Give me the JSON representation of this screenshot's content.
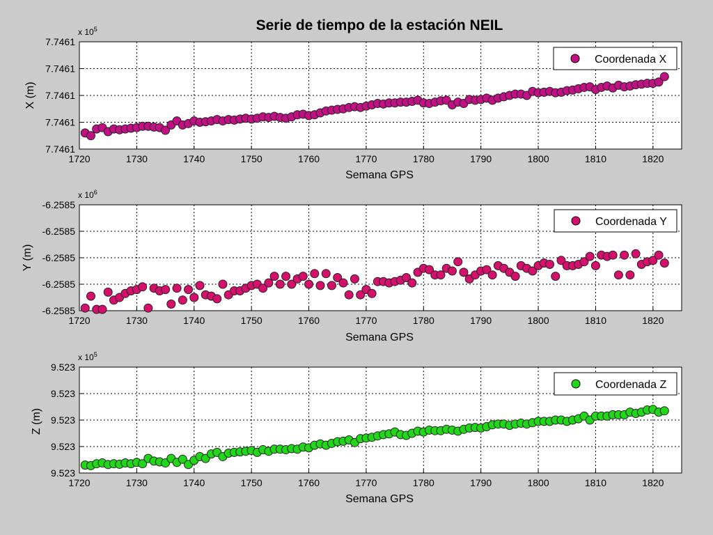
{
  "figure": {
    "title": "Serie de tiempo de la estación NEIL",
    "background": "#cbcbcb"
  },
  "chart_data": [
    {
      "type": "scatter",
      "title": "",
      "xlabel": "Semana GPS",
      "ylabel": "X (m)",
      "exponent_label": "x 10",
      "exponent_power": "5",
      "xlim": [
        1720,
        1825
      ],
      "xticks": [
        1720,
        1730,
        1740,
        1750,
        1760,
        1770,
        1780,
        1790,
        1800,
        1810,
        1820
      ],
      "ylim": [
        0,
        4
      ],
      "yticks": [
        0,
        1,
        2,
        3,
        4
      ],
      "ytick_labels": [
        "7.7461",
        "7.7461",
        "7.7461",
        "7.7461",
        "7.7461"
      ],
      "grid": true,
      "legend_position": "top-right",
      "marker_color": "#c01083",
      "series": [
        {
          "name": "Coordenada X",
          "x": [
            1721,
            1722,
            1723,
            1724,
            1725,
            1726,
            1727,
            1728,
            1729,
            1730,
            1731,
            1732,
            1733,
            1734,
            1735,
            1736,
            1737,
            1738,
            1739,
            1740,
            1741,
            1742,
            1743,
            1744,
            1745,
            1746,
            1747,
            1748,
            1749,
            1750,
            1751,
            1752,
            1753,
            1754,
            1755,
            1756,
            1757,
            1758,
            1759,
            1760,
            1761,
            1762,
            1763,
            1764,
            1765,
            1766,
            1767,
            1768,
            1769,
            1770,
            1771,
            1772,
            1773,
            1774,
            1775,
            1776,
            1777,
            1778,
            1779,
            1780,
            1781,
            1782,
            1783,
            1784,
            1785,
            1786,
            1787,
            1788,
            1789,
            1790,
            1791,
            1792,
            1793,
            1794,
            1795,
            1796,
            1797,
            1798,
            1799,
            1800,
            1801,
            1802,
            1803,
            1804,
            1805,
            1806,
            1807,
            1808,
            1809,
            1810,
            1811,
            1812,
            1813,
            1814,
            1815,
            1816,
            1817,
            1818,
            1819,
            1820,
            1821,
            1822
          ],
          "y": [
            0.6,
            0.5,
            0.75,
            0.8,
            0.65,
            0.75,
            0.72,
            0.75,
            0.78,
            0.8,
            0.85,
            0.85,
            0.82,
            0.8,
            0.7,
            0.9,
            1.05,
            0.9,
            0.95,
            1.05,
            1.0,
            1.02,
            1.05,
            1.1,
            1.05,
            1.1,
            1.08,
            1.12,
            1.15,
            1.12,
            1.15,
            1.2,
            1.18,
            1.22,
            1.18,
            1.15,
            1.2,
            1.28,
            1.3,
            1.25,
            1.28,
            1.35,
            1.42,
            1.45,
            1.48,
            1.5,
            1.55,
            1.58,
            1.55,
            1.6,
            1.65,
            1.7,
            1.68,
            1.72,
            1.72,
            1.75,
            1.75,
            1.78,
            1.82,
            1.72,
            1.7,
            1.75,
            1.8,
            1.82,
            1.65,
            1.75,
            1.7,
            1.85,
            1.82,
            1.85,
            1.9,
            1.82,
            1.9,
            1.95,
            2.0,
            2.05,
            2.05,
            2.0,
            2.15,
            2.1,
            2.12,
            2.15,
            2.1,
            2.12,
            2.18,
            2.2,
            2.25,
            2.3,
            2.32,
            2.22,
            2.3,
            2.35,
            2.28,
            2.38,
            2.32,
            2.35,
            2.4,
            2.42,
            2.45,
            2.45,
            2.5,
            2.7
          ]
        }
      ]
    },
    {
      "type": "scatter",
      "title": "",
      "xlabel": "Semana GPS",
      "ylabel": "Y (m)",
      "exponent_label": "x 10",
      "exponent_power": "6",
      "xlim": [
        1720,
        1825
      ],
      "xticks": [
        1720,
        1730,
        1740,
        1750,
        1760,
        1770,
        1780,
        1790,
        1800,
        1810,
        1820
      ],
      "ylim": [
        0,
        4
      ],
      "yticks": [
        0,
        1,
        2,
        3,
        4
      ],
      "ytick_labels": [
        "-6.2585",
        "-6.2585",
        "-6.2585",
        "-6.2585",
        "-6.2585"
      ],
      "grid": true,
      "legend_position": "top-right",
      "marker_color": "#d4106c",
      "series": [
        {
          "name": "Coordenada Y",
          "x": [
            1721,
            1722,
            1723,
            1724,
            1725,
            1726,
            1727,
            1728,
            1729,
            1730,
            1731,
            1732,
            1733,
            1734,
            1735,
            1736,
            1737,
            1738,
            1739,
            1740,
            1741,
            1742,
            1743,
            1744,
            1745,
            1746,
            1747,
            1748,
            1749,
            1750,
            1751,
            1752,
            1753,
            1754,
            1755,
            1756,
            1757,
            1758,
            1759,
            1760,
            1761,
            1762,
            1763,
            1764,
            1765,
            1766,
            1767,
            1768,
            1769,
            1770,
            1771,
            1772,
            1773,
            1774,
            1775,
            1776,
            1777,
            1778,
            1779,
            1780,
            1781,
            1782,
            1783,
            1784,
            1785,
            1786,
            1787,
            1788,
            1789,
            1790,
            1791,
            1792,
            1793,
            1794,
            1795,
            1796,
            1797,
            1798,
            1799,
            1800,
            1801,
            1802,
            1803,
            1804,
            1805,
            1806,
            1807,
            1808,
            1809,
            1810,
            1811,
            1812,
            1813,
            1814,
            1815,
            1816,
            1817,
            1818,
            1819,
            1820,
            1821,
            1822
          ],
          "y": [
            0.1,
            0.55,
            0.05,
            0.05,
            0.7,
            0.4,
            0.5,
            0.65,
            0.75,
            0.8,
            0.9,
            0.1,
            0.85,
            0.75,
            0.8,
            0.25,
            0.85,
            0.4,
            0.8,
            0.5,
            0.95,
            0.6,
            0.55,
            0.45,
            1.0,
            0.6,
            0.75,
            0.75,
            0.85,
            0.95,
            1.0,
            0.85,
            1.05,
            1.3,
            1.0,
            1.3,
            1.0,
            1.2,
            1.3,
            1.0,
            1.4,
            0.95,
            1.4,
            0.95,
            1.25,
            1.05,
            0.6,
            1.2,
            0.6,
            0.8,
            0.65,
            1.1,
            1.1,
            1.05,
            1.1,
            1.15,
            1.25,
            1.05,
            1.45,
            1.6,
            1.55,
            1.35,
            1.35,
            1.6,
            1.5,
            1.85,
            1.45,
            1.2,
            1.35,
            1.5,
            1.55,
            1.35,
            1.7,
            1.6,
            1.45,
            1.3,
            1.7,
            1.6,
            1.5,
            1.7,
            1.8,
            1.75,
            1.3,
            1.9,
            1.7,
            1.7,
            1.75,
            1.85,
            2.05,
            1.7,
            2.1,
            2.05,
            2.1,
            1.35,
            2.1,
            1.35,
            2.15,
            1.75,
            1.85,
            1.9,
            2.1,
            1.8
          ]
        }
      ]
    },
    {
      "type": "scatter",
      "title": "",
      "xlabel": "Semana GPS",
      "ylabel": "Z (m)",
      "exponent_label": "x 10",
      "exponent_power": "5",
      "xlim": [
        1720,
        1825
      ],
      "xticks": [
        1720,
        1730,
        1740,
        1750,
        1760,
        1770,
        1780,
        1790,
        1800,
        1810,
        1820
      ],
      "ylim": [
        0,
        4
      ],
      "yticks": [
        0,
        1,
        2,
        3,
        4
      ],
      "ytick_labels": [
        "9.523",
        "9.523",
        "9.523",
        "9.523",
        "9.523"
      ],
      "grid": true,
      "legend_position": "top-right",
      "marker_color": "#22d61a",
      "series": [
        {
          "name": "Coordenada Z",
          "x": [
            1721,
            1722,
            1723,
            1724,
            1725,
            1726,
            1727,
            1728,
            1729,
            1730,
            1731,
            1732,
            1733,
            1734,
            1735,
            1736,
            1737,
            1738,
            1739,
            1740,
            1741,
            1742,
            1743,
            1744,
            1745,
            1746,
            1747,
            1748,
            1749,
            1750,
            1751,
            1752,
            1753,
            1754,
            1755,
            1756,
            1757,
            1758,
            1759,
            1760,
            1761,
            1762,
            1763,
            1764,
            1765,
            1766,
            1767,
            1768,
            1769,
            1770,
            1771,
            1772,
            1773,
            1774,
            1775,
            1776,
            1777,
            1778,
            1779,
            1780,
            1781,
            1782,
            1783,
            1784,
            1785,
            1786,
            1787,
            1788,
            1789,
            1790,
            1791,
            1792,
            1793,
            1794,
            1795,
            1796,
            1797,
            1798,
            1799,
            1800,
            1801,
            1802,
            1803,
            1804,
            1805,
            1806,
            1807,
            1808,
            1809,
            1810,
            1811,
            1812,
            1813,
            1814,
            1815,
            1816,
            1817,
            1818,
            1819,
            1820,
            1821,
            1822
          ],
          "y": [
            0.3,
            0.28,
            0.35,
            0.38,
            0.32,
            0.35,
            0.33,
            0.38,
            0.35,
            0.4,
            0.35,
            0.55,
            0.45,
            0.42,
            0.38,
            0.55,
            0.4,
            0.52,
            0.32,
            0.48,
            0.62,
            0.55,
            0.72,
            0.78,
            0.62,
            0.75,
            0.78,
            0.8,
            0.82,
            0.85,
            0.78,
            0.88,
            0.82,
            0.9,
            0.9,
            0.88,
            0.92,
            0.9,
            0.98,
            0.95,
            1.05,
            1.1,
            1.05,
            1.12,
            1.18,
            1.2,
            1.25,
            1.15,
            1.3,
            1.32,
            1.35,
            1.4,
            1.45,
            1.48,
            1.55,
            1.45,
            1.42,
            1.5,
            1.58,
            1.55,
            1.62,
            1.6,
            1.6,
            1.65,
            1.62,
            1.58,
            1.65,
            1.7,
            1.72,
            1.7,
            1.75,
            1.82,
            1.85,
            1.85,
            1.8,
            1.85,
            1.88,
            1.85,
            1.9,
            1.95,
            1.95,
            1.95,
            2.0,
            2.0,
            1.95,
            2.0,
            2.05,
            2.15,
            2.0,
            2.15,
            2.15,
            2.15,
            2.2,
            2.2,
            2.2,
            2.3,
            2.25,
            2.3,
            2.38,
            2.4,
            2.3,
            2.35
          ]
        }
      ]
    }
  ]
}
